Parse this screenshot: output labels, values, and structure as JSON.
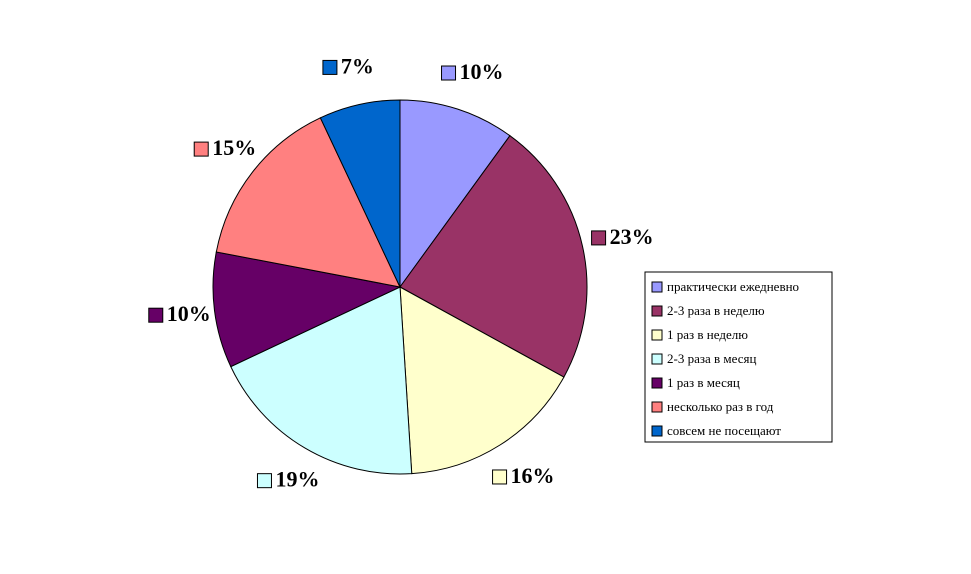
{
  "chart_data": {
    "type": "pie",
    "categories": [
      "практически ежедневно",
      "2-3 раза в неделю",
      "1 раз в неделю",
      "2-3 раза в месяц",
      "1 раз в месяц",
      "несколько раз в год",
      "совсем не посещают"
    ],
    "values": [
      10,
      23,
      16,
      19,
      10,
      15,
      7
    ],
    "value_labels": [
      "10%",
      "23%",
      "16%",
      "19%",
      "10%",
      "15%",
      "7%"
    ],
    "colors": [
      "#9999ff",
      "#993366",
      "#ffffcc",
      "#ccffff",
      "#660066",
      "#ff8080",
      "#0066cc"
    ],
    "legend": "right"
  }
}
